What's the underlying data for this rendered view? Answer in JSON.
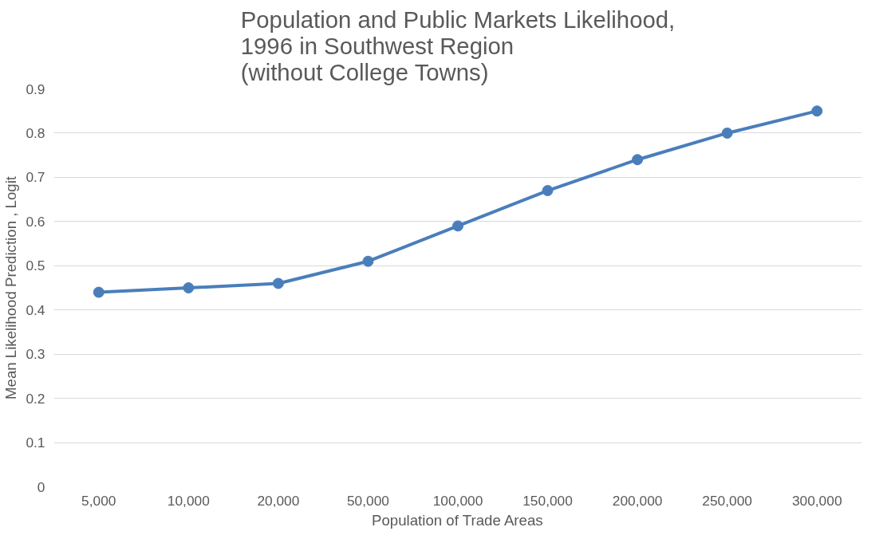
{
  "chart_data": {
    "type": "line",
    "title": "Population and Public Markets Likelihood,\n1996 in Southwest Region\n(without College Towns)",
    "xlabel": "Population of Trade Areas",
    "ylabel": "Mean Likelihood Prediction , Logit",
    "categories": [
      "5,000",
      "10,000",
      "20,000",
      "50,000",
      "100,000",
      "150,000",
      "200,000",
      "250,000",
      "300,000"
    ],
    "series": [
      {
        "color": "#4a7ebb",
        "values": [
          0.44,
          0.45,
          0.46,
          0.51,
          0.59,
          0.67,
          0.74,
          0.8,
          0.85
        ]
      }
    ],
    "ylim": [
      0,
      0.9
    ],
    "yticks": [
      0,
      0.1,
      0.2,
      0.3,
      0.4,
      0.5,
      0.6,
      0.7,
      0.8,
      0.9
    ],
    "grid": "y",
    "marker": "circle",
    "line_style": "solid"
  }
}
